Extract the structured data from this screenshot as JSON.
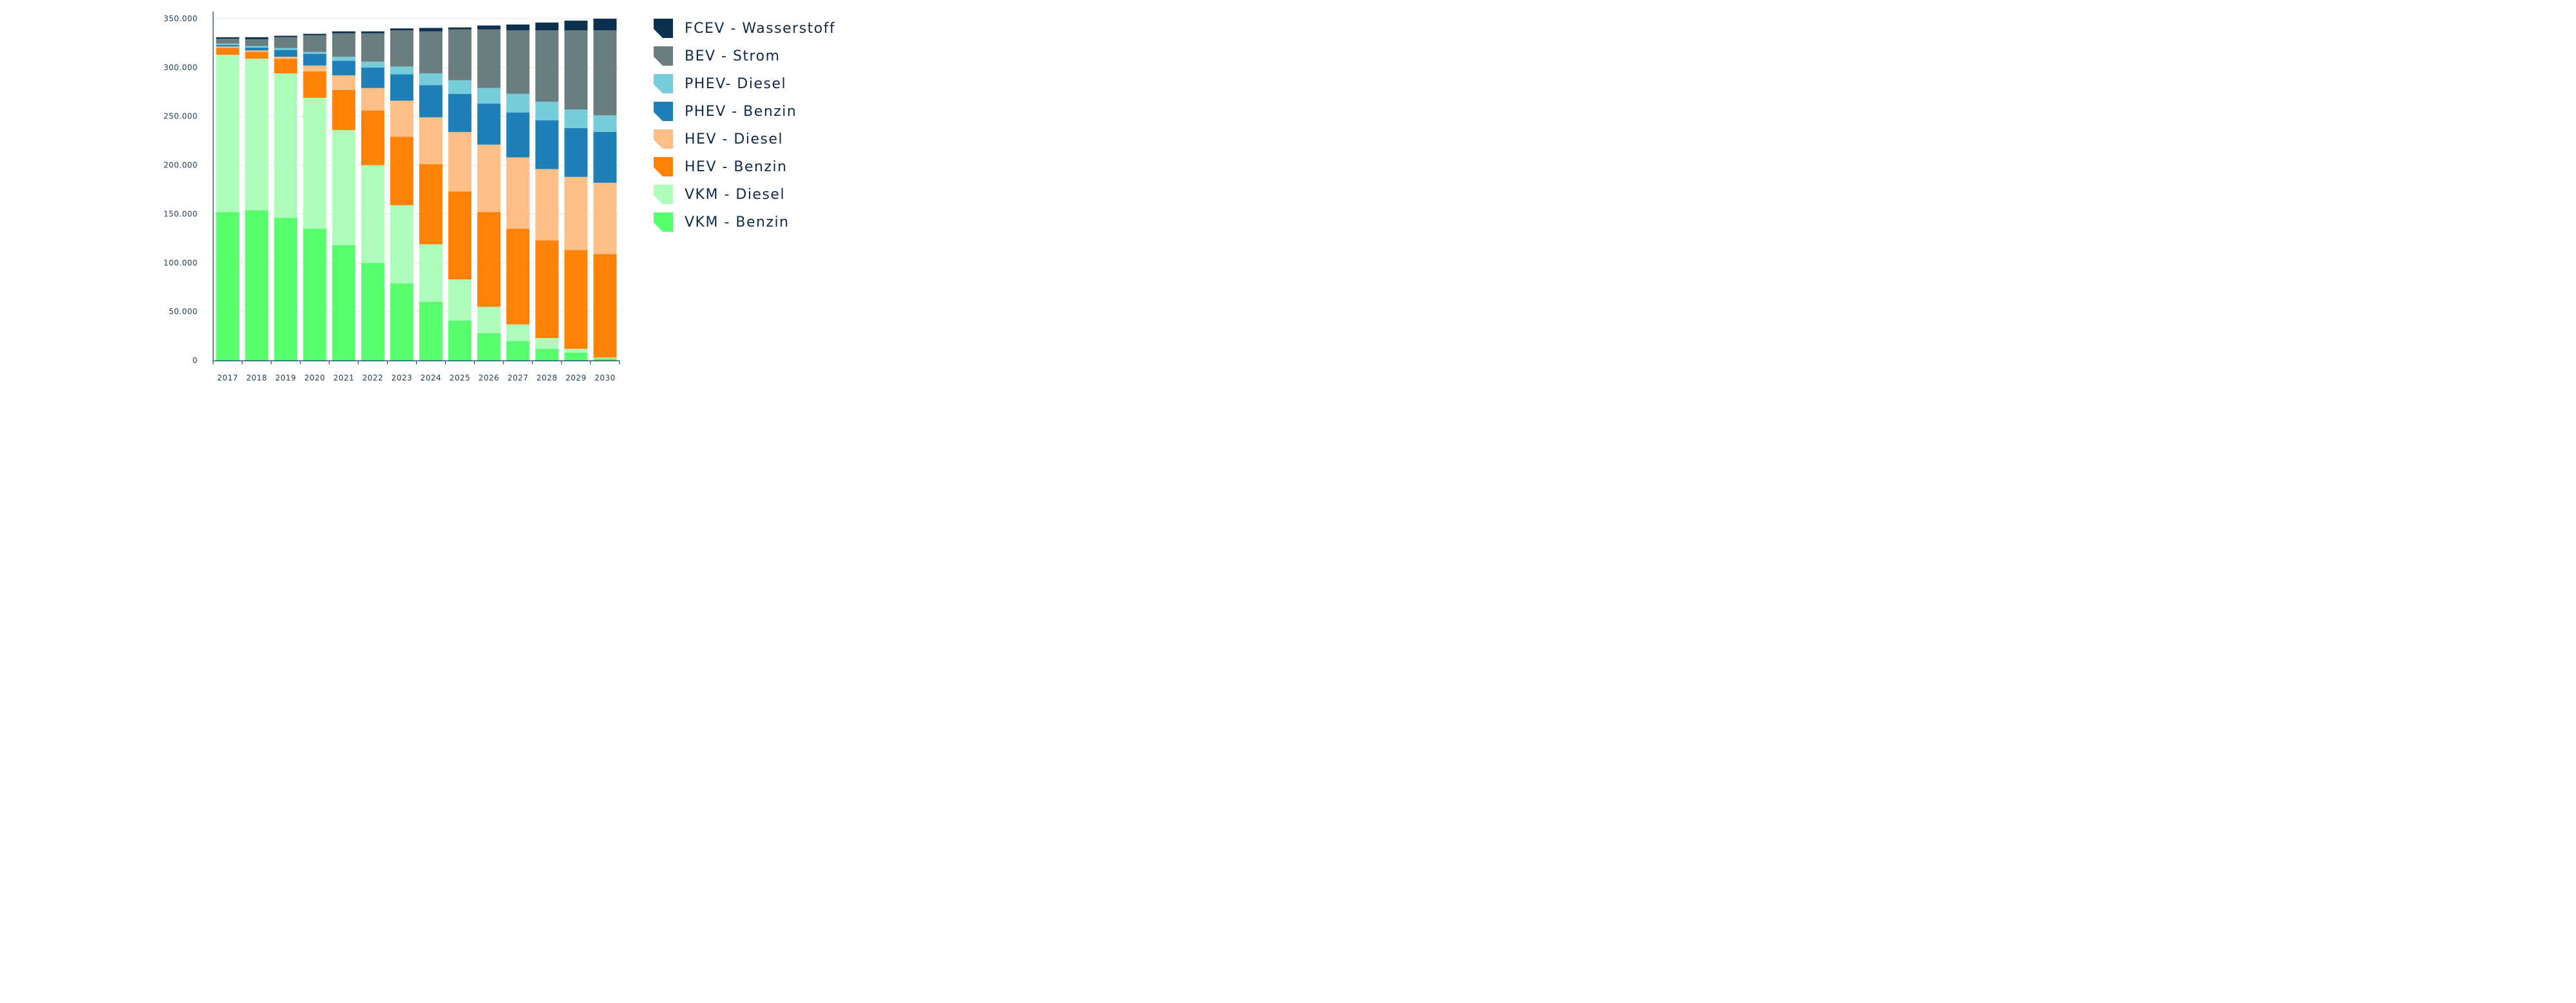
{
  "chart_data": {
    "type": "bar",
    "stacked": true,
    "title": "",
    "xlabel": "",
    "ylabel": "",
    "ylim": [
      0,
      350000
    ],
    "y_ticks": [
      0,
      50000,
      100000,
      150000,
      200000,
      250000,
      300000,
      350000
    ],
    "y_tick_labels": [
      "0",
      "50.000",
      "100.000",
      "150.000",
      "200.000",
      "250.000",
      "300.000",
      "350.000"
    ],
    "grid": true,
    "legend_position": "right",
    "categories": [
      "2017",
      "2018",
      "2019",
      "2020",
      "2021",
      "2022",
      "2023",
      "2024",
      "2025",
      "2026",
      "2027",
      "2028",
      "2029",
      "2030"
    ],
    "series": [
      {
        "name": "VKM - Benzin",
        "color": "#57ff6e",
        "values": [
          152000,
          154000,
          146000,
          135000,
          118000,
          100000,
          79000,
          60000,
          41000,
          28000,
          20000,
          12000,
          8000,
          2000
        ]
      },
      {
        "name": "VKM - Diesel",
        "color": "#aefcb9",
        "values": [
          161000,
          155000,
          148000,
          134000,
          118000,
          100000,
          80000,
          59000,
          42000,
          27000,
          17000,
          11000,
          4000,
          1000
        ]
      },
      {
        "name": "HEV - Benzin",
        "color": "#ff8207",
        "values": [
          7000,
          7000,
          15000,
          27000,
          41000,
          56000,
          70000,
          82000,
          90000,
          97000,
          98000,
          100000,
          101000,
          106000
        ]
      },
      {
        "name": "HEV - Diesel",
        "color": "#ffbe85",
        "values": [
          1500,
          1500,
          2000,
          6000,
          15000,
          23000,
          37000,
          48000,
          61000,
          69000,
          73000,
          73000,
          75000,
          73000
        ]
      },
      {
        "name": "PHEV - Benzin",
        "color": "#1f7fb7",
        "values": [
          1500,
          3000,
          7000,
          12000,
          15000,
          21000,
          27000,
          33000,
          39000,
          42000,
          46000,
          50000,
          50000,
          52000
        ]
      },
      {
        "name": "PHEV- Diesel",
        "color": "#76ccd9",
        "values": [
          1500,
          1500,
          2000,
          2000,
          4000,
          6000,
          8000,
          12000,
          14000,
          16000,
          19000,
          19000,
          19000,
          17000
        ]
      },
      {
        "name": "BEV - Strom",
        "color": "#6a7e7f",
        "values": [
          5000,
          7000,
          11000,
          17000,
          24000,
          29000,
          37000,
          43000,
          52000,
          60000,
          65000,
          73000,
          81000,
          87000
        ]
      },
      {
        "name": "FCEV - Wasserstoff",
        "color": "#0b3050",
        "values": [
          1500,
          2000,
          1500,
          1500,
          2000,
          2000,
          2000,
          3500,
          2000,
          4000,
          6000,
          8000,
          10000,
          12000
        ]
      }
    ]
  },
  "legend": [
    {
      "label": "FCEV - Wasserstoff",
      "color": "#0b3050"
    },
    {
      "label": "BEV - Strom",
      "color": "#6a7e7f"
    },
    {
      "label": "PHEV- Diesel",
      "color": "#76ccd9"
    },
    {
      "label": "PHEV - Benzin",
      "color": "#1f7fb7"
    },
    {
      "label": "HEV - Diesel",
      "color": "#ffbe85"
    },
    {
      "label": "HEV - Benzin",
      "color": "#ff8207"
    },
    {
      "label": "VKM - Diesel",
      "color": "#aefcb9"
    },
    {
      "label": "VKM - Benzin",
      "color": "#57ff6e"
    }
  ]
}
